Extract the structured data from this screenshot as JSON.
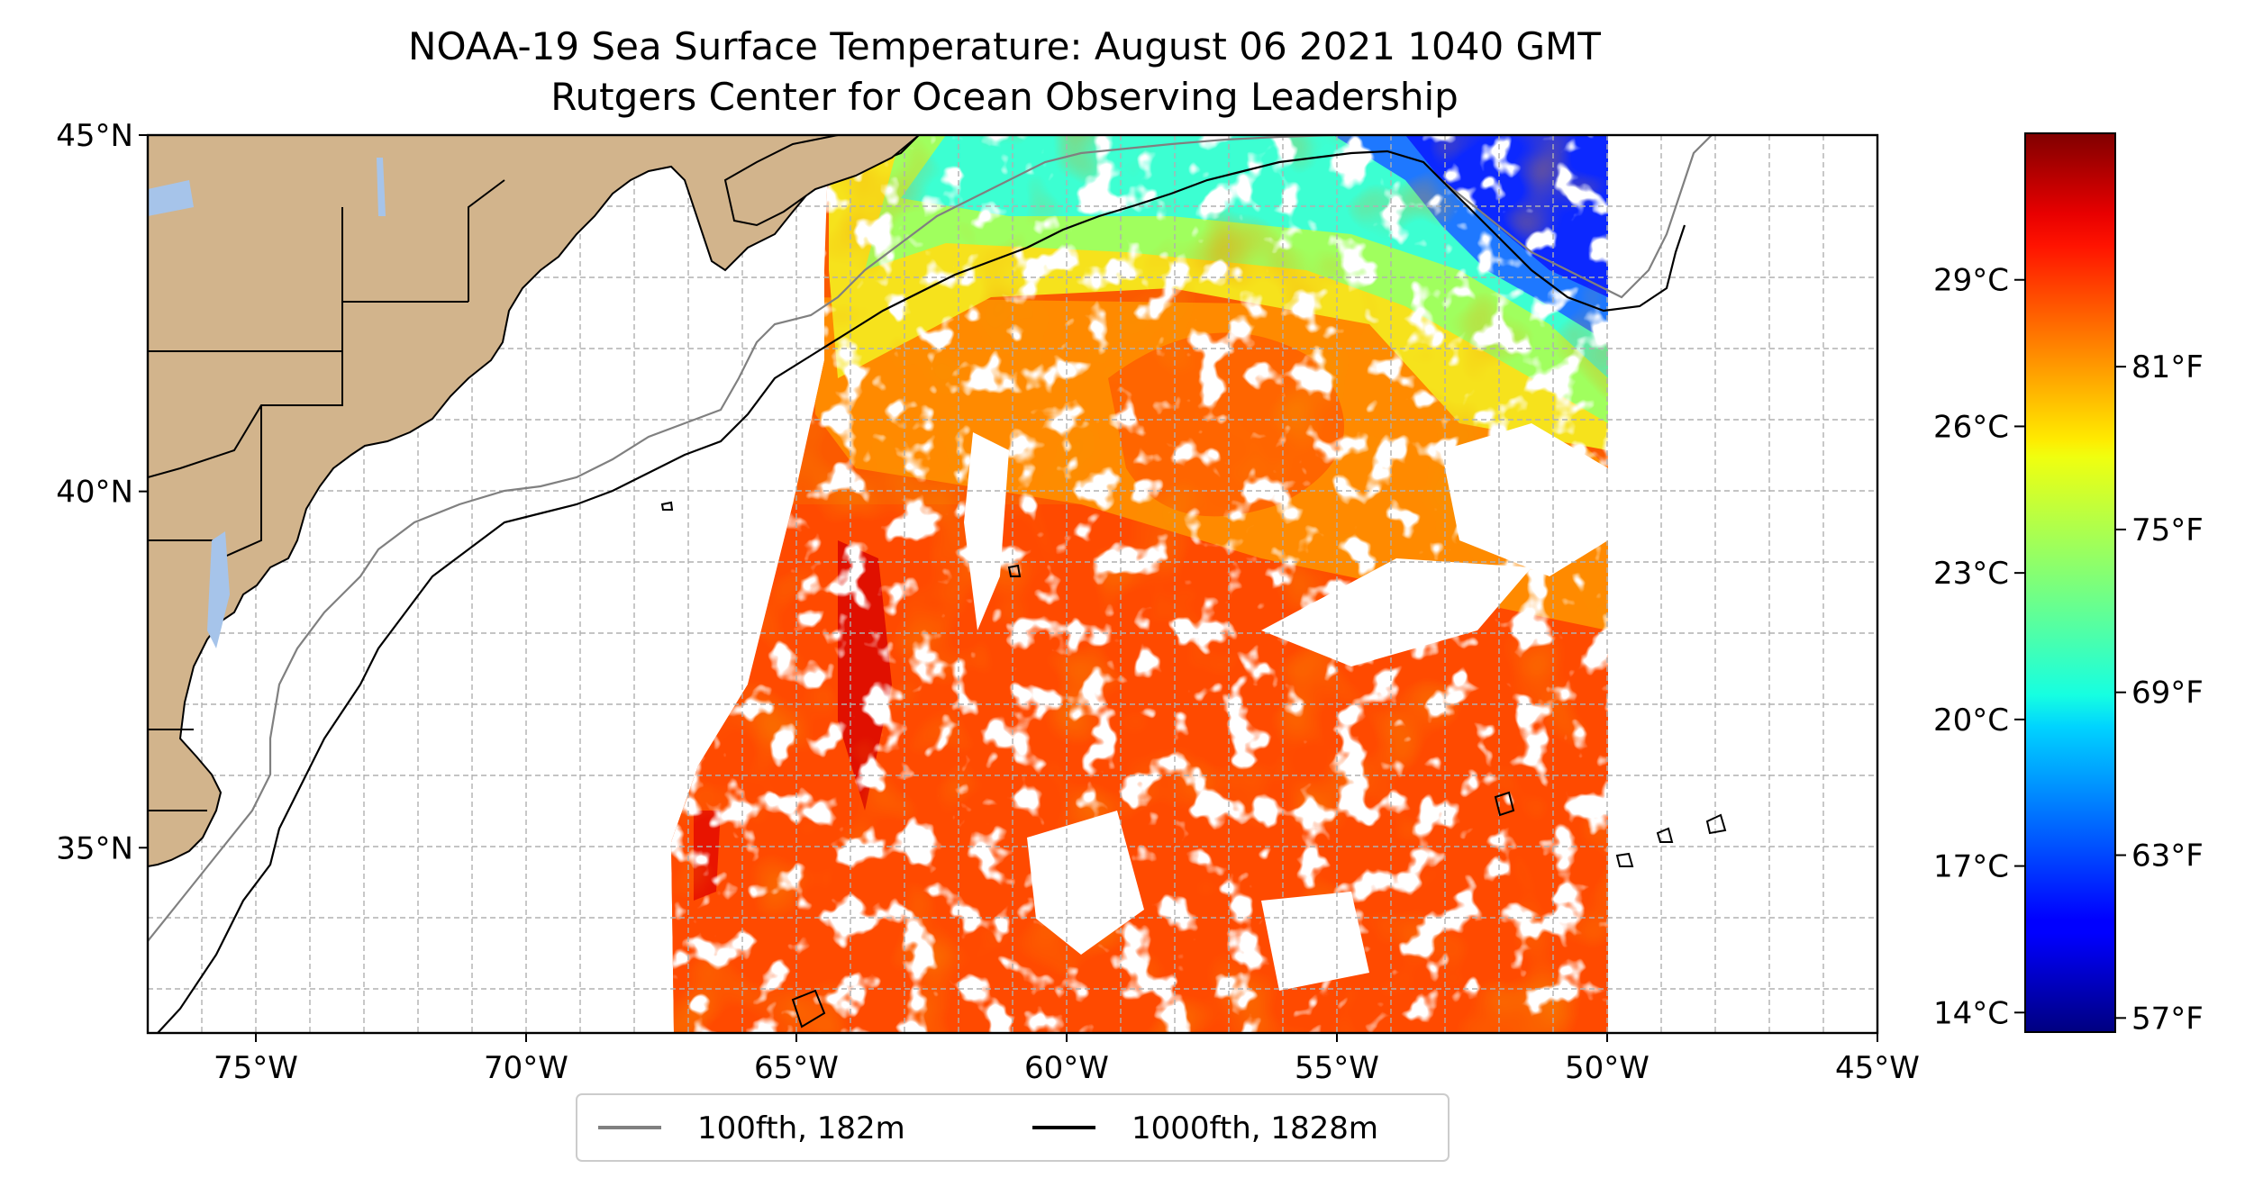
{
  "title": {
    "line1": "NOAA-19 Sea Surface Temperature: August 06 2021 1040 GMT",
    "line2": "Rutgers Center for Ocean Observing Leadership"
  },
  "axes": {
    "lon_range": [
      -77,
      -45
    ],
    "lat_range": [
      32.4,
      45
    ],
    "lon_ticks": [
      {
        "value": -75,
        "label": "75°W"
      },
      {
        "value": -70,
        "label": "70°W"
      },
      {
        "value": -65,
        "label": "65°W"
      },
      {
        "value": -60,
        "label": "60°W"
      },
      {
        "value": -55,
        "label": "55°W"
      },
      {
        "value": -50,
        "label": "50°W"
      },
      {
        "value": -45,
        "label": "45°W"
      }
    ],
    "lat_ticks": [
      {
        "value": 45,
        "label": "45°N"
      },
      {
        "value": 40,
        "label": "40°N"
      },
      {
        "value": 35,
        "label": "35°N"
      }
    ],
    "grid": true,
    "grid_style": "dashed"
  },
  "legend": {
    "placement": "bottom-center",
    "entries": [
      {
        "label": "100fth, 182m",
        "color": "#808080"
      },
      {
        "label": "1000fth, 1828m",
        "color": "#000000"
      }
    ]
  },
  "colorbar": {
    "colormap": "jet",
    "range_c": [
      13.6,
      32.0
    ],
    "celsius_ticks": [
      {
        "value": 29,
        "label": "29°C"
      },
      {
        "value": 26,
        "label": "26°C"
      },
      {
        "value": 23,
        "label": "23°C"
      },
      {
        "value": 20,
        "label": "20°C"
      },
      {
        "value": 17,
        "label": "17°C"
      },
      {
        "value": 14,
        "label": "14°C"
      }
    ],
    "fahrenheit_ticks": [
      {
        "value_c": 27.2222,
        "label": "81°F"
      },
      {
        "value_c": 23.8889,
        "label": "75°F"
      },
      {
        "value_c": 20.5556,
        "label": "69°F"
      },
      {
        "value_c": 17.2222,
        "label": "63°F"
      },
      {
        "value_c": 13.8889,
        "label": "57°F"
      }
    ]
  },
  "colors": {
    "land": "#d2b48c",
    "lakes": "#a6c4ea",
    "isobath_100fth": "#808080",
    "isobath_1000fth": "#000000"
  }
}
